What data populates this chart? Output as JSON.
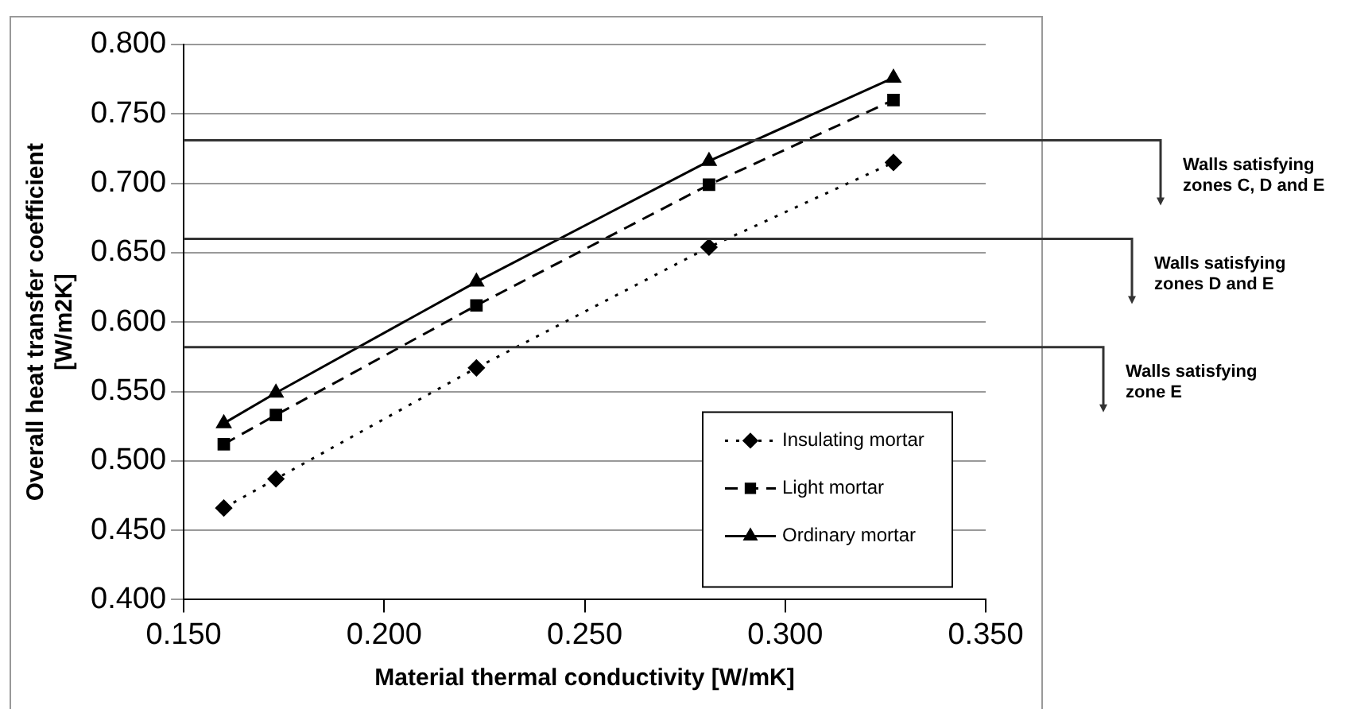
{
  "chart_data": {
    "type": "line",
    "xlabel": "Material thermal conductivity [W/mK]",
    "ylabel": "Overall heat transfer coefficient\n[W/m2K]",
    "xlim": [
      0.15,
      0.35
    ],
    "xticks": [
      {
        "value": 0.15,
        "label": "0.150"
      },
      {
        "value": 0.2,
        "label": "0.200"
      },
      {
        "value": 0.25,
        "label": "0.250"
      },
      {
        "value": 0.3,
        "label": "0.300"
      },
      {
        "value": 0.35,
        "label": "0.350"
      }
    ],
    "ylim": [
      0.4,
      0.8
    ],
    "yticks": [
      {
        "value": 0.4,
        "label": "0.400"
      },
      {
        "value": 0.45,
        "label": "0.450"
      },
      {
        "value": 0.5,
        "label": "0.500"
      },
      {
        "value": 0.55,
        "label": "0.550"
      },
      {
        "value": 0.6,
        "label": "0.600"
      },
      {
        "value": 0.65,
        "label": "0.650"
      },
      {
        "value": 0.7,
        "label": "0.700"
      },
      {
        "value": 0.75,
        "label": "0.750"
      },
      {
        "value": 0.8,
        "label": "0.800"
      }
    ],
    "x": [
      0.16,
      0.173,
      0.223,
      0.281,
      0.327
    ],
    "series": [
      {
        "name": "Insulating mortar",
        "color": "#000000",
        "marker": "diamond",
        "line_style": "dotted",
        "values": [
          0.466,
          0.487,
          0.567,
          0.654,
          0.715
        ]
      },
      {
        "name": "Light mortar",
        "color": "#000000",
        "marker": "square",
        "line_style": "dashed",
        "values": [
          0.512,
          0.533,
          0.612,
          0.699,
          0.76
        ]
      },
      {
        "name": "Ordinary mortar",
        "color": "#000000",
        "marker": "triangle",
        "line_style": "solid",
        "values": [
          0.527,
          0.549,
          0.629,
          0.716,
          0.776
        ]
      }
    ],
    "ref_lines": [
      {
        "axis": "y",
        "value": 0.731,
        "label": "Walls satisfying zones C, D and E",
        "color": "#333333"
      },
      {
        "axis": "y",
        "value": 0.66,
        "label": "Walls satisfying zones D and E",
        "color": "#333333"
      },
      {
        "axis": "y",
        "value": 0.582,
        "label": "Walls satisfying zone E",
        "color": "#333333"
      }
    ],
    "grid": "y",
    "legend": "bottom right"
  }
}
